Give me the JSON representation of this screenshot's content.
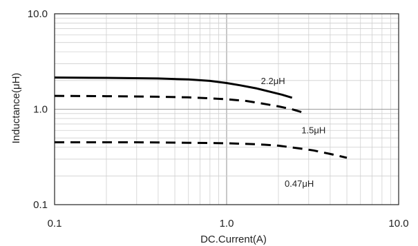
{
  "chart_data": {
    "type": "line",
    "title": "",
    "xlabel": "DC.Current(A)",
    "ylabel": "Inductance(μH)",
    "xscale": "log",
    "yscale": "log",
    "xlim": [
      0.1,
      10.0
    ],
    "ylim": [
      0.1,
      10.0
    ],
    "grid": true,
    "legend": "none (series labeled inline)",
    "x_tick_labels": [
      "0.1",
      "1.0",
      "10.0"
    ],
    "y_tick_labels": [
      "10.0",
      "1.0",
      "0.1"
    ],
    "series": [
      {
        "name": "2.2μH",
        "line_style": "solid",
        "color": "#000000",
        "x": [
          0.1,
          0.2,
          0.4,
          0.6,
          0.8,
          1.0,
          1.2,
          1.5,
          1.8,
          2.1,
          2.4
        ],
        "y": [
          2.15,
          2.13,
          2.1,
          2.05,
          1.98,
          1.88,
          1.78,
          1.65,
          1.52,
          1.42,
          1.32
        ]
      },
      {
        "name": "1.5μH",
        "line_style": "dashed",
        "color": "#000000",
        "x": [
          0.1,
          0.2,
          0.4,
          0.6,
          0.8,
          1.0,
          1.3,
          1.6,
          2.0,
          2.4,
          2.8
        ],
        "y": [
          1.38,
          1.37,
          1.35,
          1.33,
          1.3,
          1.27,
          1.22,
          1.15,
          1.07,
          1.0,
          0.92
        ]
      },
      {
        "name": "0.47μH",
        "line_style": "dashed",
        "color": "#000000",
        "x": [
          0.1,
          0.3,
          0.6,
          1.0,
          1.5,
          2.0,
          2.6,
          3.2,
          4.0,
          5.0
        ],
        "y": [
          0.45,
          0.45,
          0.445,
          0.44,
          0.43,
          0.415,
          0.39,
          0.37,
          0.34,
          0.31
        ]
      }
    ]
  }
}
